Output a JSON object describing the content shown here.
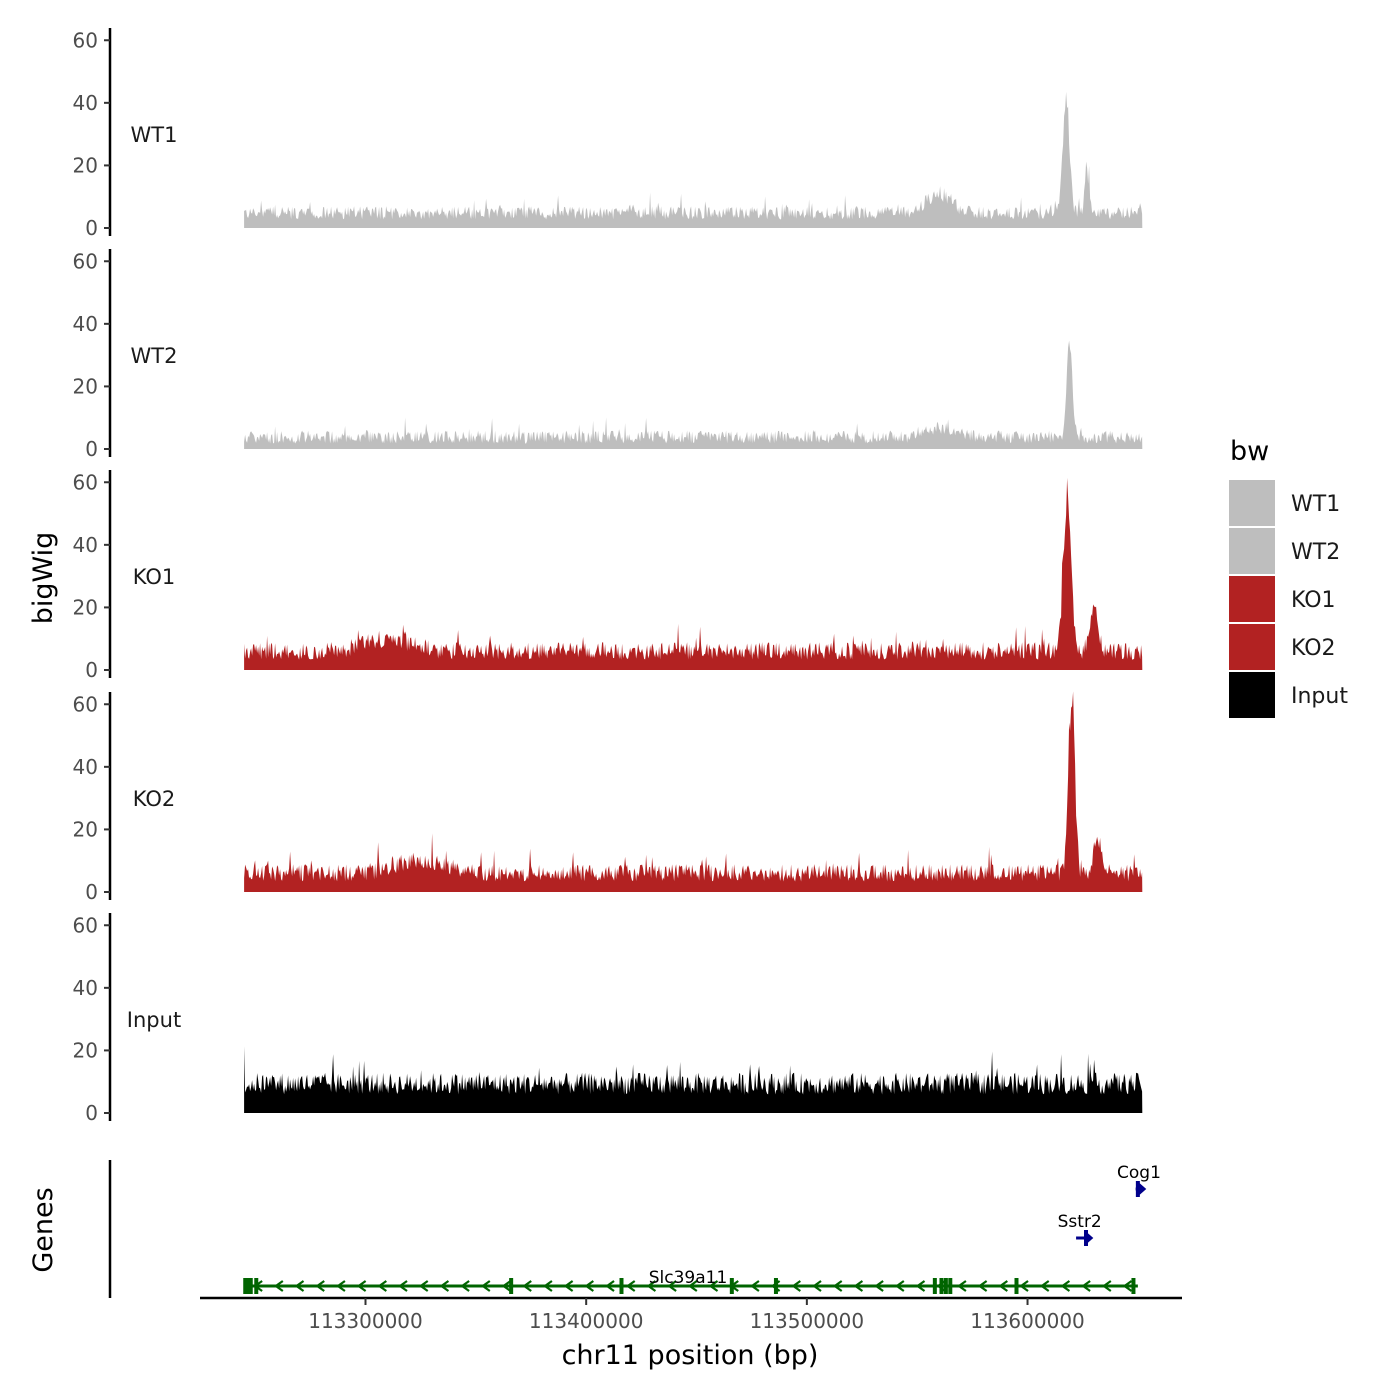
{
  "chart_data": {
    "type": "area",
    "xlabel": "chr11 position (bp)",
    "ylabel": "bigWig",
    "genes_axis_label": "Genes",
    "x_range": [
      113225000,
      113670000
    ],
    "x_data_range": [
      113245000,
      113652000
    ],
    "x_ticks": [
      113300000,
      113400000,
      113500000,
      113600000
    ],
    "x_tick_labels": [
      "113300000",
      "113400000",
      "113500000",
      "113600000"
    ],
    "y_range": [
      0,
      62
    ],
    "y_ticks": [
      0,
      20,
      40,
      60
    ],
    "y_tick_labels": [
      "0",
      "20",
      "40",
      "60"
    ],
    "grid": false,
    "legend": {
      "title": "bw",
      "position": "right",
      "entries": [
        {
          "label": "WT1",
          "color": "#bebebe"
        },
        {
          "label": "WT2",
          "color": "#bebebe"
        },
        {
          "label": "KO1",
          "color": "#b22222"
        },
        {
          "label": "KO2",
          "color": "#b22222"
        },
        {
          "label": "Input",
          "color": "#000000"
        }
      ]
    },
    "series": [
      {
        "name": "WT1",
        "color": "#bebebe",
        "baseline": 4,
        "noise": 3,
        "peaks": [
          {
            "x": 113617500,
            "height": 34,
            "width": 2200
          },
          {
            "x": 113627000,
            "height": 14,
            "width": 1400
          },
          {
            "x": 113560000,
            "height": 6,
            "width": 8000
          }
        ]
      },
      {
        "name": "WT2",
        "color": "#bebebe",
        "baseline": 3,
        "noise": 3,
        "peaks": [
          {
            "x": 113619000,
            "height": 31,
            "width": 1800
          },
          {
            "x": 113560000,
            "height": 3,
            "width": 9000
          }
        ]
      },
      {
        "name": "KO1",
        "color": "#b22222",
        "baseline": 5,
        "noise": 4,
        "peaks": [
          {
            "x": 113618000,
            "height": 49,
            "width": 2400
          },
          {
            "x": 113630000,
            "height": 15,
            "width": 2500
          },
          {
            "x": 113310000,
            "height": 4,
            "width": 15000
          }
        ]
      },
      {
        "name": "KO2",
        "color": "#b22222",
        "baseline": 5,
        "noise": 4,
        "peaks": [
          {
            "x": 113620000,
            "height": 59,
            "width": 2000
          },
          {
            "x": 113632000,
            "height": 12,
            "width": 2500
          },
          {
            "x": 113325000,
            "height": 4,
            "width": 15000
          }
        ]
      },
      {
        "name": "Input",
        "color": "#000000",
        "baseline": 8,
        "noise": 5,
        "peaks": []
      }
    ],
    "genes": [
      {
        "name": "Slc39a11",
        "start": 113245000,
        "end": 113650000,
        "strand": "-",
        "color": "#006400",
        "row": 0,
        "exons": [
          113245500,
          113246500,
          113248000,
          113250500,
          113366000,
          113416000,
          113466000,
          113486000,
          113558000,
          113561000,
          113563000,
          113565000,
          113595000,
          113648000
        ]
      },
      {
        "name": "Sstr2",
        "start": 113622000,
        "end": 113628000,
        "strand": "+",
        "color": "#00008b",
        "row": 1,
        "exons": [
          113626500
        ]
      },
      {
        "name": "Cog1",
        "start": 113649000,
        "end": 113652000,
        "strand": "+",
        "color": "#00008b",
        "row": 2,
        "exons": [
          113650000
        ]
      }
    ]
  }
}
